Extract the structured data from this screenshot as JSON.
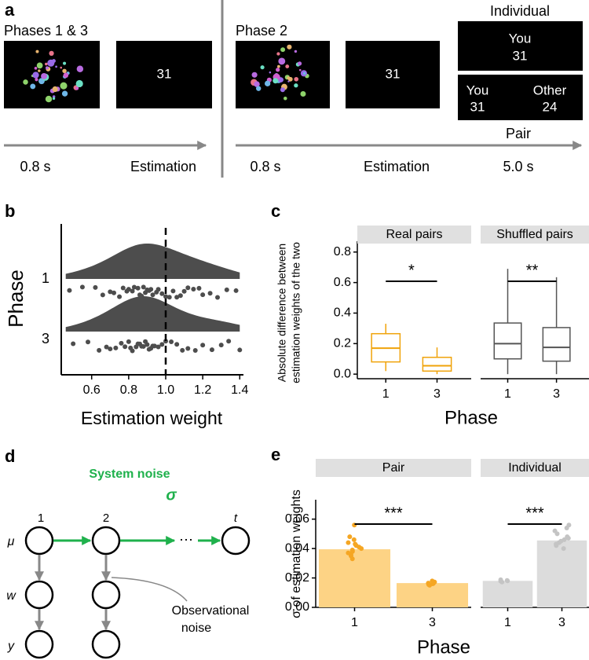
{
  "panel_a": {
    "label": "a",
    "left": {
      "title": "Phases 1 & 3",
      "number": "31",
      "times": [
        "0.8 s",
        "Estimation"
      ]
    },
    "right": {
      "title": "Phase 2",
      "number": "31",
      "individual": {
        "title": "Individual",
        "you": "You",
        "you_value": "31"
      },
      "pair": {
        "title": "Pair",
        "you": "You",
        "you_value": "31",
        "other": "Other",
        "other_value": "24"
      },
      "times": [
        "0.8 s",
        "Estimation",
        "5.0 s"
      ]
    }
  },
  "panel_d": {
    "label": "d",
    "rows": [
      "μ",
      "w",
      "y"
    ],
    "steps": [
      "1",
      "2",
      "t"
    ],
    "system_noise": "System noise",
    "sigma": "σ",
    "ellipsis": "⋯",
    "observational_noise": [
      "Observational",
      "noise"
    ]
  },
  "chart_data": [
    {
      "type": "raincloud",
      "label": "b",
      "xlabel": "Estimation weight",
      "ylabel": "Phase",
      "categories": [
        "1",
        "3"
      ],
      "values": [
        [
          0.48,
          0.55,
          0.62,
          0.66,
          0.7,
          0.72,
          0.75,
          0.77,
          0.79,
          0.8,
          0.82,
          0.83,
          0.85,
          0.86,
          0.87,
          0.88,
          0.89,
          0.9,
          0.91,
          0.92,
          0.93,
          0.95,
          0.96,
          0.98,
          1.0,
          1.02,
          1.04,
          1.06,
          1.08,
          1.1,
          1.12,
          1.15,
          1.18,
          1.2,
          1.24,
          1.28,
          1.33,
          1.38
        ],
        [
          0.5,
          0.58,
          0.64,
          0.68,
          0.7,
          0.73,
          0.76,
          0.78,
          0.8,
          0.81,
          0.82,
          0.84,
          0.85,
          0.86,
          0.87,
          0.88,
          0.89,
          0.9,
          0.91,
          0.92,
          0.93,
          0.94,
          0.96,
          0.98,
          1.0,
          1.03,
          1.06,
          1.09,
          1.12,
          1.16,
          1.2,
          1.25,
          1.3,
          1.34,
          1.4
        ]
      ],
      "xlim": [
        0.44,
        1.42
      ],
      "xticks": [
        0.6,
        0.8,
        {
          "value": 1,
          "label": "1.0"
        },
        1.2,
        1.4
      ],
      "reference_line": 1,
      "color": "#4d4d4d"
    },
    {
      "type": "boxplot",
      "label": "c",
      "ylabel": [
        "Absolute difference between",
        "estimation weights of the two"
      ],
      "xlabel": "Phase",
      "ylim": [
        -0.03,
        0.84
      ],
      "yticks": [
        {
          "value": 0,
          "label": "0.0"
        },
        0.2,
        0.4,
        0.6,
        0.8
      ],
      "facets": [
        {
          "title": "Real pairs",
          "color": "#f0a30a",
          "categories": [
            "1",
            "3"
          ],
          "annotation": "*",
          "boxes": [
            {
              "min": 0.02,
              "q1": 0.08,
              "median": 0.17,
              "q3": 0.265,
              "max": 0.33
            },
            {
              "min": 0.0,
              "q1": 0.02,
              "median": 0.055,
              "q3": 0.11,
              "max": 0.175
            }
          ]
        },
        {
          "title": "Shuffled pairs",
          "color": "#555555",
          "categories": [
            "1",
            "3"
          ],
          "annotation": "**",
          "boxes": [
            {
              "min": 0.0,
              "q1": 0.1,
              "median": 0.2,
              "q3": 0.335,
              "max": 0.69
            },
            {
              "min": 0.0,
              "q1": 0.085,
              "median": 0.175,
              "q3": 0.305,
              "max": 0.635
            }
          ]
        }
      ]
    },
    {
      "type": "bar",
      "label": "e",
      "ylabel": "σ of estimation weights",
      "xlabel": "Phase",
      "ylim": [
        0,
        0.07
      ],
      "yticks": [
        {
          "value": 0,
          "label": "0.00"
        },
        {
          "value": 0.02,
          "label": "0.02"
        },
        {
          "value": 0.04,
          "label": "0.04"
        },
        {
          "value": 0.06,
          "label": "0.06"
        }
      ],
      "facets": [
        {
          "title": "Pair",
          "color": "#fdd385",
          "point_color": "#f5a623",
          "categories": [
            "1",
            "3"
          ],
          "values": [
            0.0395,
            0.0165
          ],
          "annotation": "***",
          "points": [
            [
              0.033,
              0.035,
              0.036,
              0.037,
              0.038,
              0.039,
              0.04,
              0.041,
              0.042,
              0.043,
              0.044,
              0.046,
              0.048,
              0.056
            ],
            [
              0.015,
              0.0155,
              0.016,
              0.0162,
              0.0165,
              0.017,
              0.0172,
              0.018
            ]
          ]
        },
        {
          "title": "Individual",
          "color": "#dcdcdc",
          "point_color": "#c4c4c4",
          "categories": [
            "1",
            "3"
          ],
          "values": [
            0.018,
            0.0455
          ],
          "annotation": "***",
          "points": [
            [
              0.0172,
              0.0178,
              0.018,
              0.0183,
              0.0188
            ],
            [
              0.04,
              0.042,
              0.043,
              0.044,
              0.045,
              0.046,
              0.047,
              0.048,
              0.05,
              0.052,
              0.054,
              0.056
            ]
          ]
        }
      ]
    }
  ]
}
